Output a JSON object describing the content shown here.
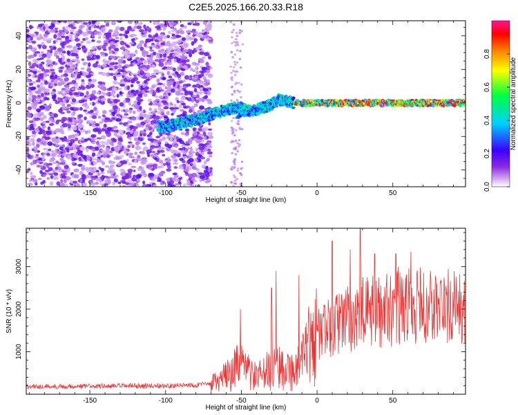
{
  "chart_data": [
    {
      "type": "heatmap",
      "title": "C2E5.2025.166.20.33.R18",
      "xlabel": "Height of straight line (km)",
      "ylabel": "Frequency (Hz)",
      "xlim": [
        -192,
        98
      ],
      "ylim": [
        -50,
        49
      ],
      "x_ticks": [
        -150,
        -100,
        -50,
        0,
        50
      ],
      "y_ticks": [
        -40,
        -20,
        0,
        20,
        40
      ],
      "grid": false,
      "colorbar": {
        "label": "Normalized spectral amplitude",
        "ticks": [
          0.0,
          0.2,
          0.4,
          0.6,
          0.8
        ],
        "range": [
          0,
          1
        ],
        "colormap": "rainbow",
        "colors": [
          "#ffffff",
          "#d9b8f2",
          "#8a2be2",
          "#3a00ff",
          "#00d0ff",
          "#00ff40",
          "#ffff00",
          "#ff8000",
          "#ff0000",
          "#ff1493"
        ]
      },
      "trace": {
        "x": [
          -100,
          -90,
          -80,
          -70,
          -60,
          -55,
          -50,
          -45,
          -40,
          -30,
          -25,
          -20,
          -15,
          -10,
          0,
          20,
          40,
          60,
          80,
          95
        ],
        "y": [
          -14,
          -12,
          -10,
          -7,
          -4,
          -3,
          -3,
          -5,
          -4,
          -1,
          2,
          1,
          0,
          0,
          0,
          0,
          0,
          0,
          0,
          0
        ]
      }
    },
    {
      "type": "line",
      "xlabel": "Height of straight line (km)",
      "ylabel": "SNR (10 * v/v)",
      "xlim": [
        -192,
        98
      ],
      "ylim": [
        0,
        3900
      ],
      "x_ticks": [
        -150,
        -100,
        -50,
        0,
        50
      ],
      "y_ticks": [
        1000,
        2000,
        3000
      ],
      "grid": false,
      "color": "#ee3333",
      "envelope": {
        "x": [
          -192,
          -100,
          -80,
          -70,
          -65,
          -60,
          -55,
          -50,
          -45,
          -40,
          -35,
          -30,
          -25,
          -20,
          -15,
          -10,
          -5,
          0,
          10,
          20,
          30,
          40,
          50,
          60,
          70,
          80,
          90,
          98
        ],
        "y": [
          180,
          200,
          220,
          240,
          300,
          420,
          600,
          620,
          520,
          380,
          480,
          620,
          720,
          620,
          520,
          720,
          1150,
          1400,
          1600,
          1750,
          1900,
          1950,
          2050,
          2100,
          2050,
          2050,
          2050,
          1950
        ]
      },
      "peaks": [
        {
          "x": -50.5,
          "y": 2000
        },
        {
          "x": -30,
          "y": 2500
        },
        {
          "x": -27,
          "y": 2900
        },
        {
          "x": -12,
          "y": 2800
        },
        {
          "x": 10,
          "y": 3600
        },
        {
          "x": 22,
          "y": 3400
        },
        {
          "x": 28.5,
          "y": 3900
        },
        {
          "x": 38,
          "y": 3300
        },
        {
          "x": 52,
          "y": 3300
        },
        {
          "x": 62,
          "y": 3350
        }
      ]
    }
  ]
}
